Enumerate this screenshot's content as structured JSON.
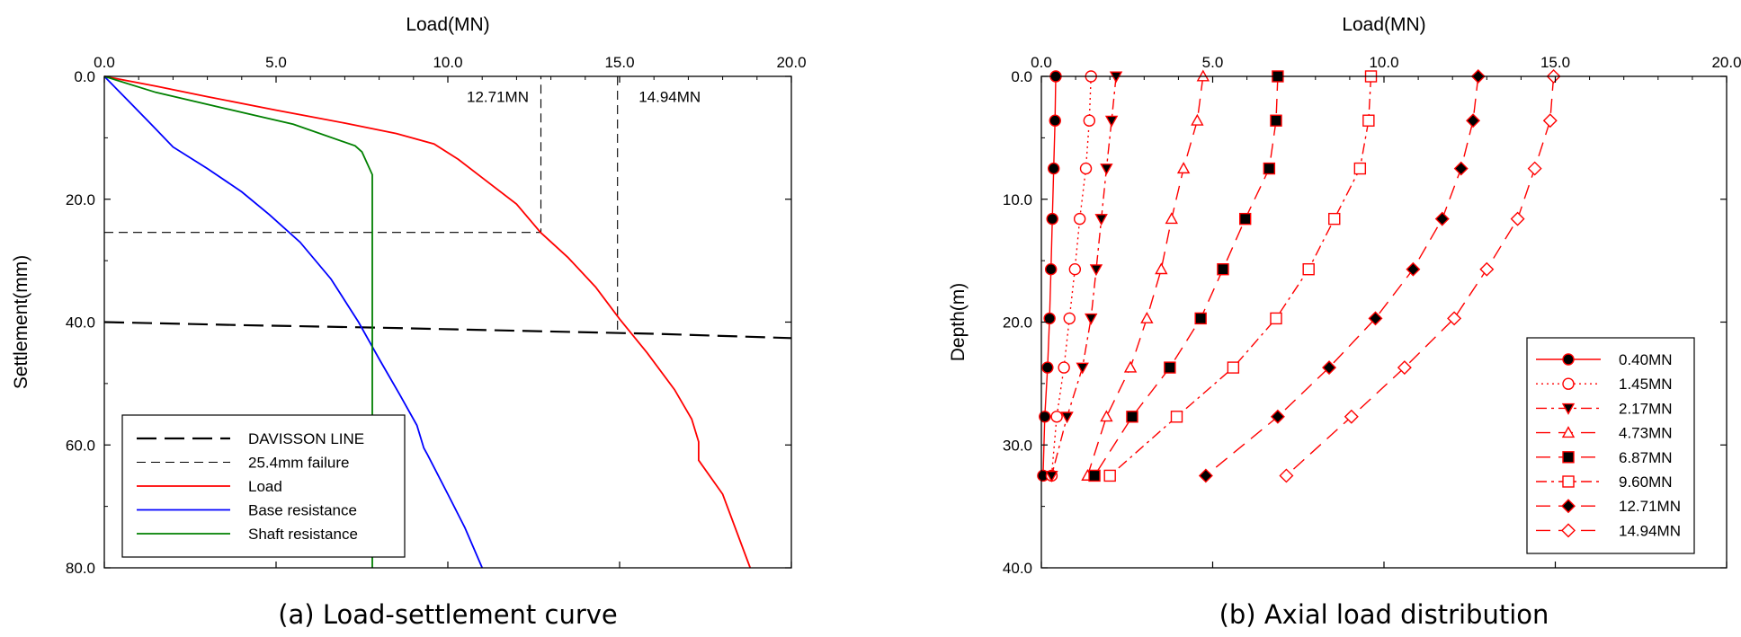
{
  "chart_data": [
    {
      "type": "line",
      "caption": "(a) Load-settlement curve",
      "xlabel": "Load(MN)",
      "ylabel": "Settlement(mm)",
      "xlim": [
        0,
        20
      ],
      "ylim": [
        0,
        80
      ],
      "y_inverted": true,
      "x_axis_position": "top",
      "xticks": [
        "0.0",
        "5.0",
        "10.0",
        "15.0",
        "20.0"
      ],
      "yticks": [
        "0.0",
        "20.0",
        "40.0",
        "60.0",
        "80.0"
      ],
      "annotations": [
        {
          "text": "12.71MN",
          "x": 12.71
        },
        {
          "text": "14.94MN",
          "x": 14.94
        }
      ],
      "legend_position": "bottom-left",
      "series": [
        {
          "name": "DAVISSON LINE",
          "color": "#000000",
          "style": "long-dash",
          "x": [
            0,
            4,
            8,
            12,
            16,
            20
          ],
          "y": [
            40.0,
            40.5,
            40.9,
            41.4,
            41.9,
            42.6
          ]
        },
        {
          "name": "25.4mm failure",
          "color": "#000000",
          "style": "dash",
          "x": [
            0,
            12.71,
            12.71
          ],
          "y": [
            25.4,
            25.4,
            0
          ]
        },
        {
          "name": "25.4mm failure (14.94MN)",
          "color": "#000000",
          "style": "dash",
          "x": [
            14.94,
            14.94
          ],
          "y": [
            0,
            42.0
          ]
        },
        {
          "name": "Load",
          "color": "#ff0000",
          "style": "solid",
          "x": [
            0,
            1.5,
            3,
            5,
            7,
            8.5,
            9.6,
            10.3,
            11,
            12,
            12.7,
            13.5,
            14.3,
            15,
            15.8,
            16.6,
            17.1,
            17.3,
            17.3,
            18,
            18.8
          ],
          "y": [
            0,
            1.6,
            3.3,
            5.5,
            7.6,
            9.3,
            11.0,
            13.5,
            16.5,
            20.8,
            25.4,
            29.5,
            34.3,
            39.5,
            45.0,
            51.0,
            55.8,
            59.5,
            62.5,
            68.0,
            80.0
          ]
        },
        {
          "name": "Base resistance",
          "color": "#0000ff",
          "style": "solid",
          "x": [
            0,
            0.7,
            1.4,
            2.0,
            3.0,
            4.0,
            4.8,
            5.7,
            6.6,
            7.4,
            8.0,
            8.6,
            9.1,
            9.3,
            9.4,
            10.0,
            10.5,
            11.0
          ],
          "y": [
            0,
            4.0,
            8.0,
            11.5,
            15.0,
            18.8,
            22.5,
            27.0,
            33.0,
            40.0,
            46.0,
            51.8,
            56.8,
            60.5,
            61.5,
            68.0,
            73.5,
            80.0
          ]
        },
        {
          "name": "Shaft resistance",
          "color": "#008000",
          "style": "solid",
          "x": [
            0,
            1.5,
            3.5,
            5.5,
            7.3,
            7.5,
            7.8,
            7.8,
            7.8
          ],
          "y": [
            0,
            2.6,
            5.2,
            7.8,
            11.3,
            12.3,
            16.0,
            40.0,
            80.0
          ]
        }
      ]
    },
    {
      "type": "line",
      "caption": "(b) Axial load distribution",
      "xlabel": "Load(MN)",
      "ylabel": "Depth(m)",
      "xlim": [
        0,
        20
      ],
      "ylim": [
        0,
        40
      ],
      "y_inverted": true,
      "x_axis_position": "top",
      "xticks": [
        "0.0",
        "5.0",
        "10.0",
        "15.0",
        "20.0"
      ],
      "yticks": [
        "0.0",
        "10.0",
        "20.0",
        "30.0",
        "40.0"
      ],
      "legend_position": "bottom-right",
      "depth": [
        0,
        3.6,
        7.5,
        11.6,
        15.7,
        19.7,
        23.7,
        27.7,
        32.5
      ],
      "series": [
        {
          "name": "0.40MN",
          "color": "#ff0000",
          "line": "solid",
          "marker": "circle",
          "filled": true,
          "values": [
            0.42,
            0.4,
            0.36,
            0.32,
            0.28,
            0.24,
            0.18,
            0.1,
            0.05
          ]
        },
        {
          "name": "1.45MN",
          "color": "#ff0000",
          "line": "dotted",
          "marker": "circle",
          "filled": false,
          "values": [
            1.45,
            1.4,
            1.3,
            1.12,
            0.98,
            0.82,
            0.66,
            0.45,
            0.3
          ]
        },
        {
          "name": "2.17MN",
          "color": "#ff0000",
          "line": "dash-dot",
          "marker": "triangle-down",
          "filled": true,
          "values": [
            2.18,
            2.05,
            1.9,
            1.75,
            1.6,
            1.45,
            1.2,
            0.75,
            0.3
          ]
        },
        {
          "name": "4.73MN",
          "color": "#ff0000",
          "line": "long-dash",
          "marker": "triangle-up",
          "filled": false,
          "values": [
            4.72,
            4.55,
            4.15,
            3.8,
            3.5,
            3.08,
            2.6,
            1.9,
            1.35
          ]
        },
        {
          "name": "6.87MN",
          "color": "#ff0000",
          "line": "long-dash",
          "marker": "square",
          "filled": true,
          "values": [
            6.9,
            6.85,
            6.65,
            5.95,
            5.3,
            4.65,
            3.75,
            2.65,
            1.55
          ]
        },
        {
          "name": "9.60MN",
          "color": "#ff0000",
          "line": "dash-dot",
          "marker": "square",
          "filled": false,
          "values": [
            9.62,
            9.55,
            9.3,
            8.55,
            7.8,
            6.85,
            5.6,
            3.95,
            2.0
          ]
        },
        {
          "name": "12.71MN",
          "color": "#ff0000",
          "line": "long-dash",
          "marker": "diamond",
          "filled": true,
          "values": [
            12.75,
            12.6,
            12.25,
            11.7,
            10.85,
            9.75,
            8.4,
            6.9,
            4.8
          ]
        },
        {
          "name": "14.94MN",
          "color": "#ff0000",
          "line": "long-dash",
          "marker": "diamond",
          "filled": false,
          "values": [
            14.95,
            14.85,
            14.4,
            13.9,
            13.0,
            12.05,
            10.6,
            9.05,
            7.15
          ]
        }
      ]
    }
  ]
}
